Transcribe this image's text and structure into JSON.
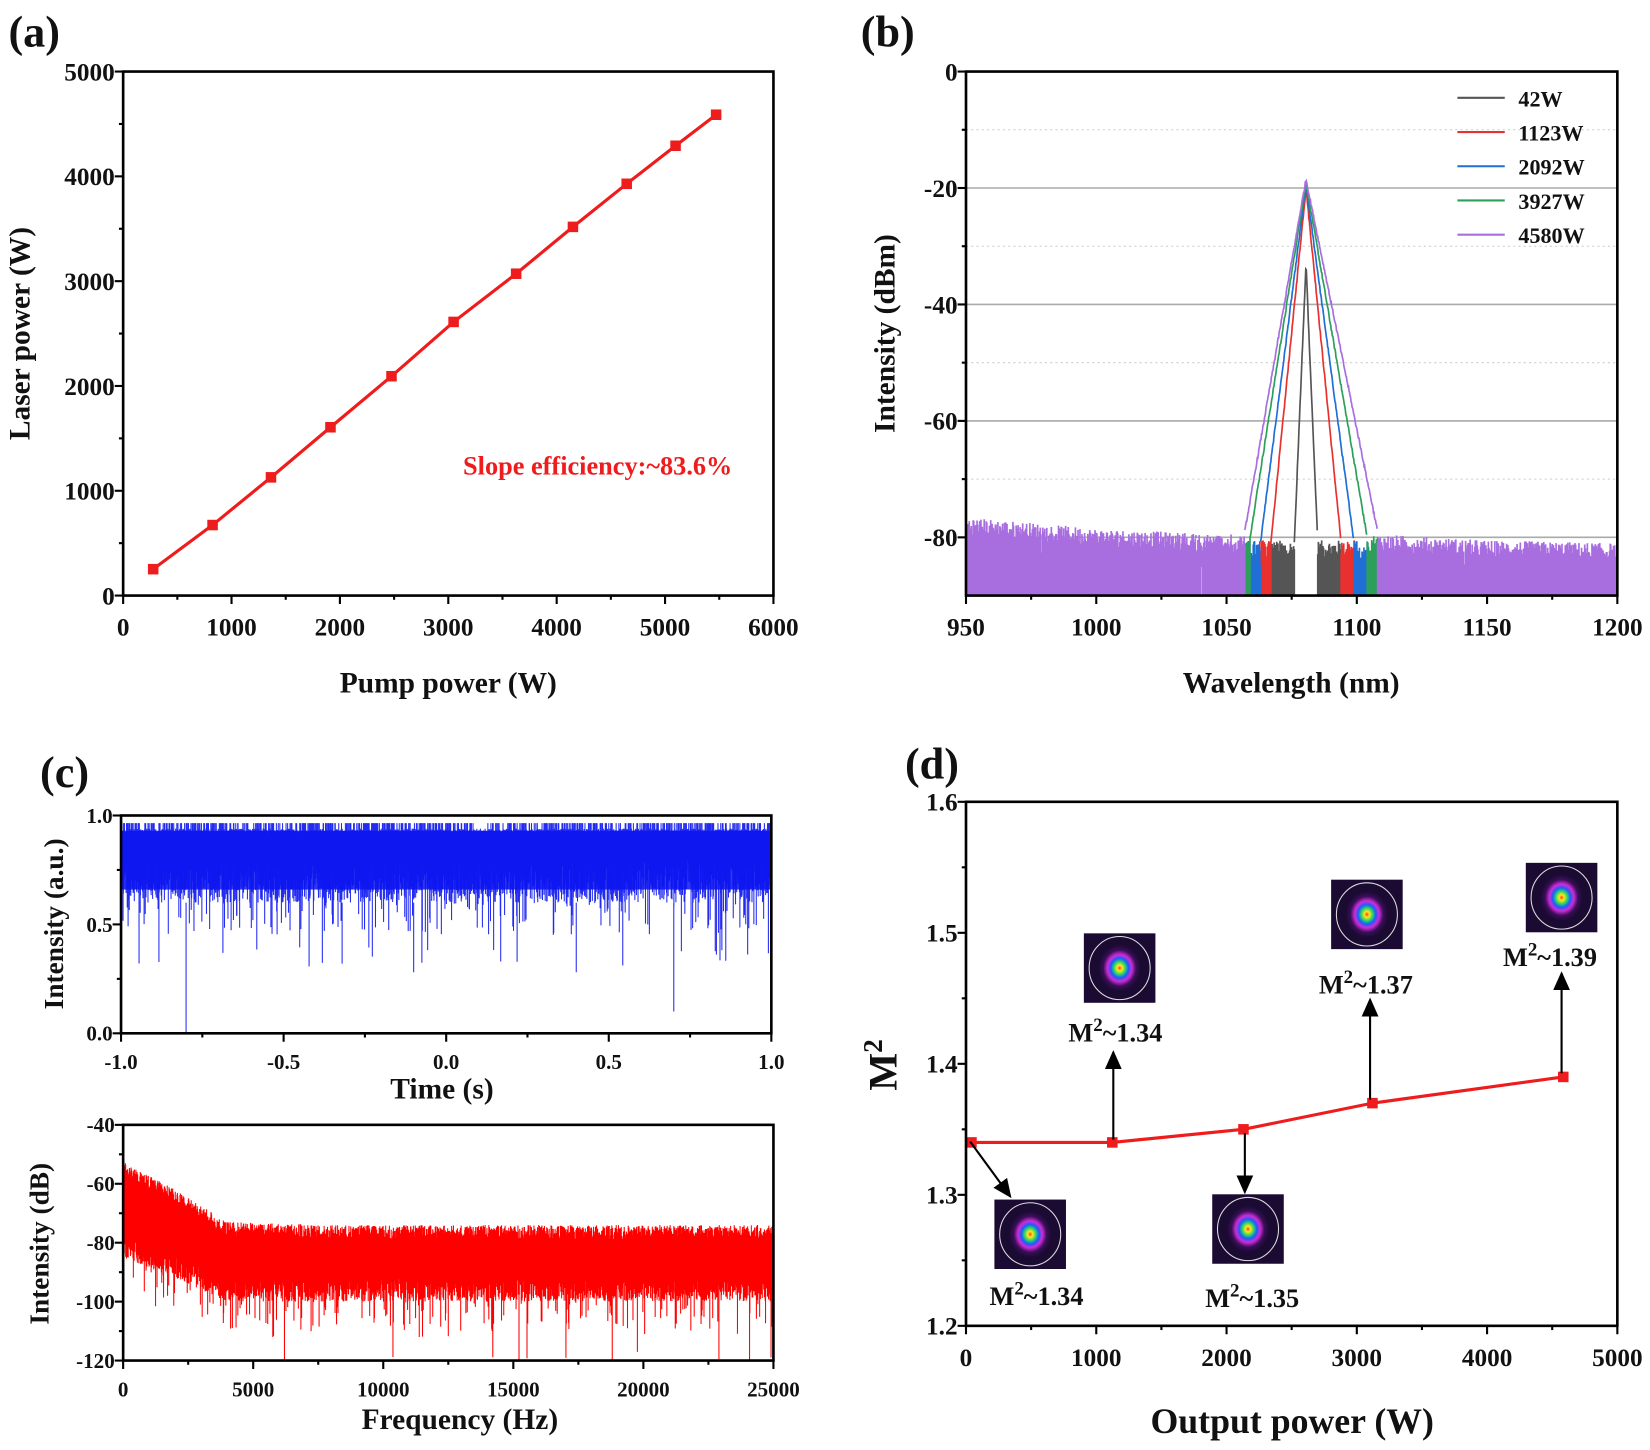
{
  "panels": {
    "a": {
      "label": "(a)"
    },
    "b": {
      "label": "(b)"
    },
    "c": {
      "label": "(c)"
    },
    "d": {
      "label": "(d)"
    }
  },
  "chart_data": [
    {
      "id": "a",
      "type": "line",
      "xlabel": "Pump power (W)",
      "ylabel": "Laser power (W)",
      "xlim": [
        0,
        6000
      ],
      "ylim": [
        0,
        5000
      ],
      "xticks": [
        0,
        1000,
        2000,
        3000,
        4000,
        5000,
        6000
      ],
      "yticks": [
        0,
        1000,
        2000,
        3000,
        4000,
        5000
      ],
      "x": [
        277,
        825,
        1364,
        1913,
        2476,
        3049,
        3626,
        4150,
        4646,
        5097,
        5471
      ],
      "y": [
        252,
        673,
        1128,
        1606,
        2093,
        2611,
        3071,
        3518,
        3929,
        4292,
        4588
      ],
      "color": "#ee1c1c",
      "marker": "square",
      "annotation": "Slope efficiency:~83.6%",
      "grid": false
    },
    {
      "id": "b",
      "type": "line",
      "xlabel": "Wavelength (nm)",
      "ylabel": "Intensity (dBm)",
      "xlim": [
        950,
        1200
      ],
      "ylim": [
        -90,
        0
      ],
      "xticks": [
        950,
        1000,
        1050,
        1100,
        1150,
        1200
      ],
      "yticks": [
        0,
        -20,
        -40,
        -60,
        -80
      ],
      "grid": true,
      "legend_position": "top-right",
      "series": [
        {
          "name": "42W",
          "color": "#555555",
          "peak_wavelength": 1080.5,
          "peak": -33,
          "left_foot": 1076,
          "right_foot": 1085,
          "floor": -82
        },
        {
          "name": "1123W",
          "color": "#e8312f",
          "peak_wavelength": 1080.5,
          "peak": -20,
          "left_foot": 1067,
          "right_foot": 1094,
          "floor": -82
        },
        {
          "name": "2092W",
          "color": "#1f6fd6",
          "peak_wavelength": 1080.5,
          "peak": -19.5,
          "left_foot": 1063,
          "right_foot": 1099,
          "floor": -82
        },
        {
          "name": "3927W",
          "color": "#2ca05a",
          "peak_wavelength": 1080.5,
          "peak": -19,
          "left_foot": 1059,
          "right_foot": 1104,
          "floor": -81
        },
        {
          "name": "4580W",
          "color": "#a86ee0",
          "peak_wavelength": 1080.5,
          "peak": -18.5,
          "left_foot": 1057,
          "right_foot": 1108,
          "floor": -80,
          "floor_points": {
            "x": [
              950,
              1000,
              1050,
              1110,
              1150,
              1200
            ],
            "y": [
              -78,
              -80,
              -81,
              -81,
              -82,
              -82.5
            ]
          }
        }
      ]
    },
    {
      "id": "c-time",
      "type": "line",
      "xlabel": "Time (s)",
      "ylabel": "Intensity (a.u.)",
      "xlim": [
        -1.0,
        1.0
      ],
      "ylim": [
        0.0,
        1.0
      ],
      "xticks": [
        -1.0,
        -0.5,
        0.0,
        0.5,
        1.0
      ],
      "yticks": [
        0.0,
        0.5,
        1.0
      ],
      "color": "#0a14f0",
      "upper_level": 0.94,
      "typical_lower_level": 0.65,
      "deepest_dips": [
        [
          -0.8,
          0.0
        ],
        [
          0.7,
          0.1
        ],
        [
          -0.1,
          0.28
        ],
        [
          0.4,
          0.28
        ],
        [
          -0.32,
          0.32
        ]
      ]
    },
    {
      "id": "c-freq",
      "type": "line",
      "xlabel": "Frequency (Hz)",
      "ylabel": "Intensity (dB)",
      "xlim": [
        0,
        25000
      ],
      "ylim": [
        -120,
        -40
      ],
      "xticks": [
        0,
        5000,
        10000,
        15000,
        20000,
        25000
      ],
      "yticks": [
        -40,
        -60,
        -80,
        -100,
        -120
      ],
      "color": "#ff0000",
      "upper_envelope": {
        "x": [
          0,
          500,
          2000,
          4000,
          8000,
          25000
        ],
        "y": [
          -52,
          -55,
          -62,
          -73,
          -74,
          -74
        ]
      },
      "lower_envelope": {
        "x": [
          0,
          2000,
          4000,
          8000,
          25000
        ],
        "y": [
          -85,
          -92,
          -100,
          -100,
          -100
        ]
      }
    },
    {
      "id": "d",
      "type": "line",
      "xlabel": "Output power (W)",
      "ylabel": {
        "base": "M",
        "sup": "2"
      },
      "xlim": [
        0,
        5000
      ],
      "ylim": [
        1.2,
        1.6
      ],
      "xticks": [
        0,
        1000,
        2000,
        3000,
        4000,
        5000
      ],
      "yticks": [
        1.2,
        1.3,
        1.4,
        1.5,
        1.6
      ],
      "x": [
        42,
        1123,
        2130,
        3120,
        4585
      ],
      "y": [
        1.34,
        1.34,
        1.35,
        1.37,
        1.39
      ],
      "color": "#ee1c1c",
      "marker": "square",
      "annotations": [
        {
          "base": "M",
          "sup": "2",
          "value": "~1.34"
        },
        {
          "base": "M",
          "sup": "2",
          "value": "~1.34"
        },
        {
          "base": "M",
          "sup": "2",
          "value": "~1.35"
        },
        {
          "base": "M",
          "sup": "2",
          "value": "~1.37"
        },
        {
          "base": "M",
          "sup": "2",
          "value": "~1.39"
        }
      ]
    }
  ]
}
